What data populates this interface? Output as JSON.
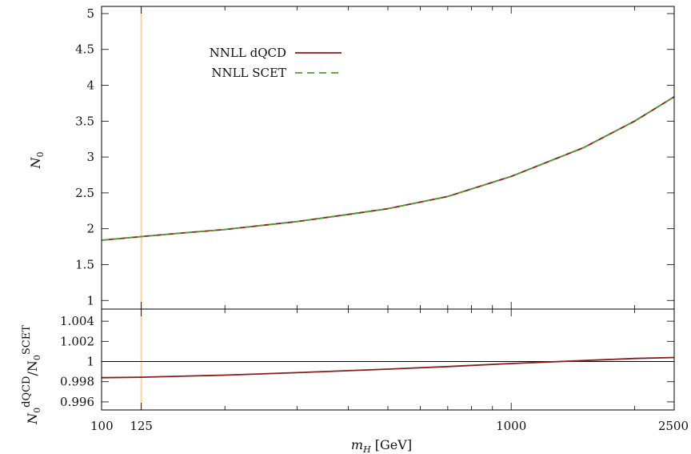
{
  "chart_data": [
    {
      "type": "line",
      "panel": "top",
      "ylabel_base": "N",
      "ylabel_sub": "0",
      "xscale": "log",
      "xlim": [
        100,
        2500
      ],
      "ylim": [
        0.88,
        5.1
      ],
      "yticks": [
        "1",
        "1.5",
        "2",
        "2.5",
        "3",
        "3.5",
        "4",
        "4.5",
        "5"
      ],
      "yticks_values": [
        1,
        1.5,
        2,
        2.5,
        3,
        3.5,
        4,
        4.5,
        5
      ],
      "legend_position": "top-left",
      "vline": {
        "x": 125,
        "color": "#fcd49c"
      },
      "series": [
        {
          "name": "NNLL dQCD",
          "color": "#8b1a1a",
          "style": "solid",
          "x": [
            100,
            125,
            150,
            200,
            300,
            400,
            500,
            700,
            1000,
            1500,
            2000,
            2500
          ],
          "y": [
            1.84,
            1.89,
            1.93,
            1.99,
            2.1,
            2.2,
            2.28,
            2.45,
            2.73,
            3.13,
            3.5,
            3.84
          ]
        },
        {
          "name": "NNLL SCET",
          "color": "#4aa02c",
          "style": "dashed",
          "x": [
            100,
            125,
            150,
            200,
            300,
            400,
            500,
            700,
            1000,
            1500,
            2000,
            2500
          ],
          "y": [
            1.84,
            1.89,
            1.93,
            1.99,
            2.1,
            2.2,
            2.28,
            2.45,
            2.73,
            3.13,
            3.5,
            3.84
          ]
        }
      ]
    },
    {
      "type": "line",
      "panel": "bottom",
      "ylabel_parts": [
        "N",
        "0",
        "dQCD",
        "/N",
        "0",
        "SCET"
      ],
      "xlabel_main": "m",
      "xlabel_sub": "H",
      "xlabel_unit": "[GeV]",
      "xscale": "log",
      "xlim": [
        100,
        2500
      ],
      "xticks": [
        "100",
        "125",
        "1000",
        "2500"
      ],
      "xticks_values": [
        100,
        125,
        1000,
        2500
      ],
      "ylim": [
        0.9952,
        1.0052
      ],
      "yticks": [
        "0.996",
        "0.998",
        "1",
        "1.002",
        "1.004"
      ],
      "yticks_values": [
        0.996,
        0.998,
        1.0,
        1.002,
        1.004
      ],
      "refline": 1.0,
      "vline": {
        "x": 125,
        "color": "#fcd49c"
      },
      "series": [
        {
          "name": "",
          "color": "#8b1a1a",
          "x": [
            100,
            125,
            200,
            300,
            500,
            700,
            1000,
            1500,
            2000,
            2500
          ],
          "y": [
            0.9984,
            0.99845,
            0.99865,
            0.9989,
            0.99925,
            0.9995,
            0.9998,
            1.0001,
            1.0003,
            1.0004
          ]
        }
      ]
    }
  ]
}
